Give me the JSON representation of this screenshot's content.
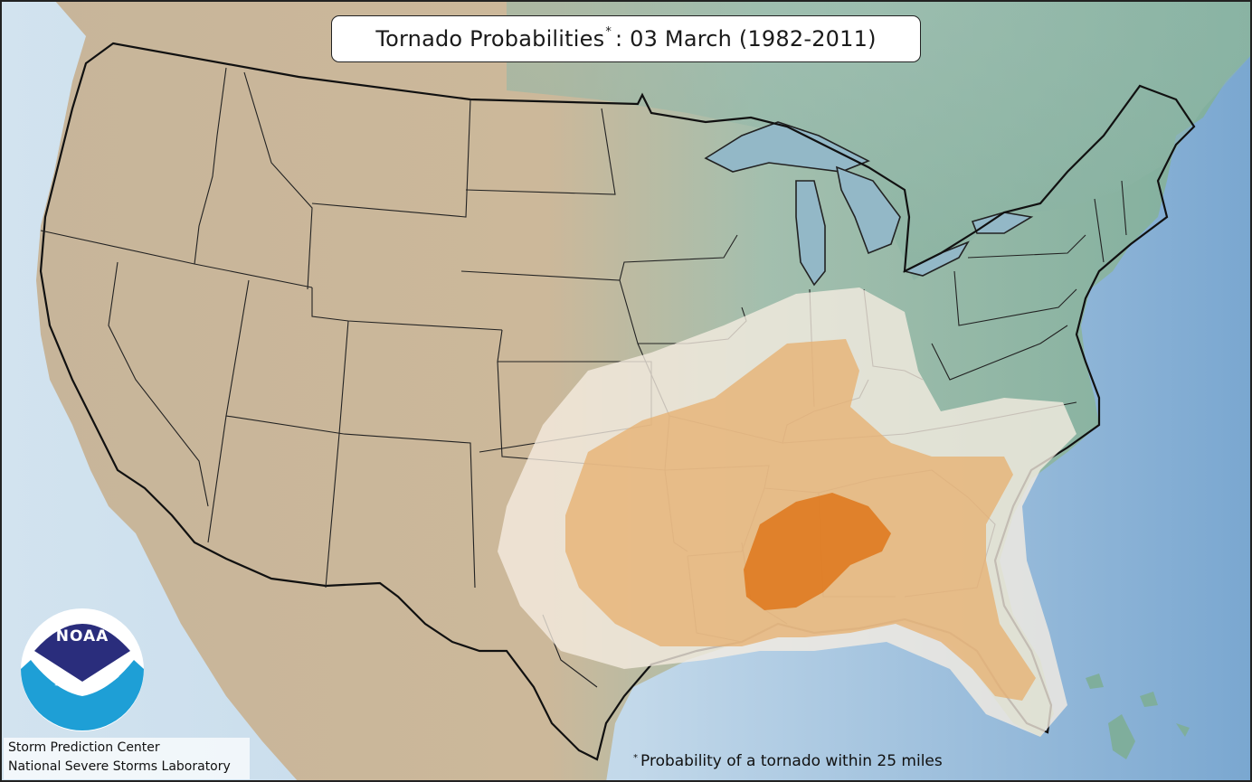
{
  "title": {
    "text": "Tornado Probabilities",
    "asterisk": "*",
    "date_text": ": 03 March (1982-2011)"
  },
  "footnote": {
    "asterisk": "*",
    "text": "Probability of a tornado within 25 miles"
  },
  "credits": {
    "line1": "Storm Prediction Center",
    "line2": "National Severe Storms Laboratory"
  },
  "logo": {
    "text": "NOAA",
    "icon": "noaa-logo-icon"
  },
  "colors": {
    "ocean": "#b9d2e6",
    "ocean_deep": "#7fa9d0",
    "land_west": "#c9b9a0",
    "land_east": "#8fb5a6",
    "prob_low": "#f5ece0",
    "prob_mid": "#e8b57a",
    "prob_high": "#e07a1f",
    "noaa_navy": "#2a2d7c",
    "noaa_blue": "#1e9fd6"
  }
}
